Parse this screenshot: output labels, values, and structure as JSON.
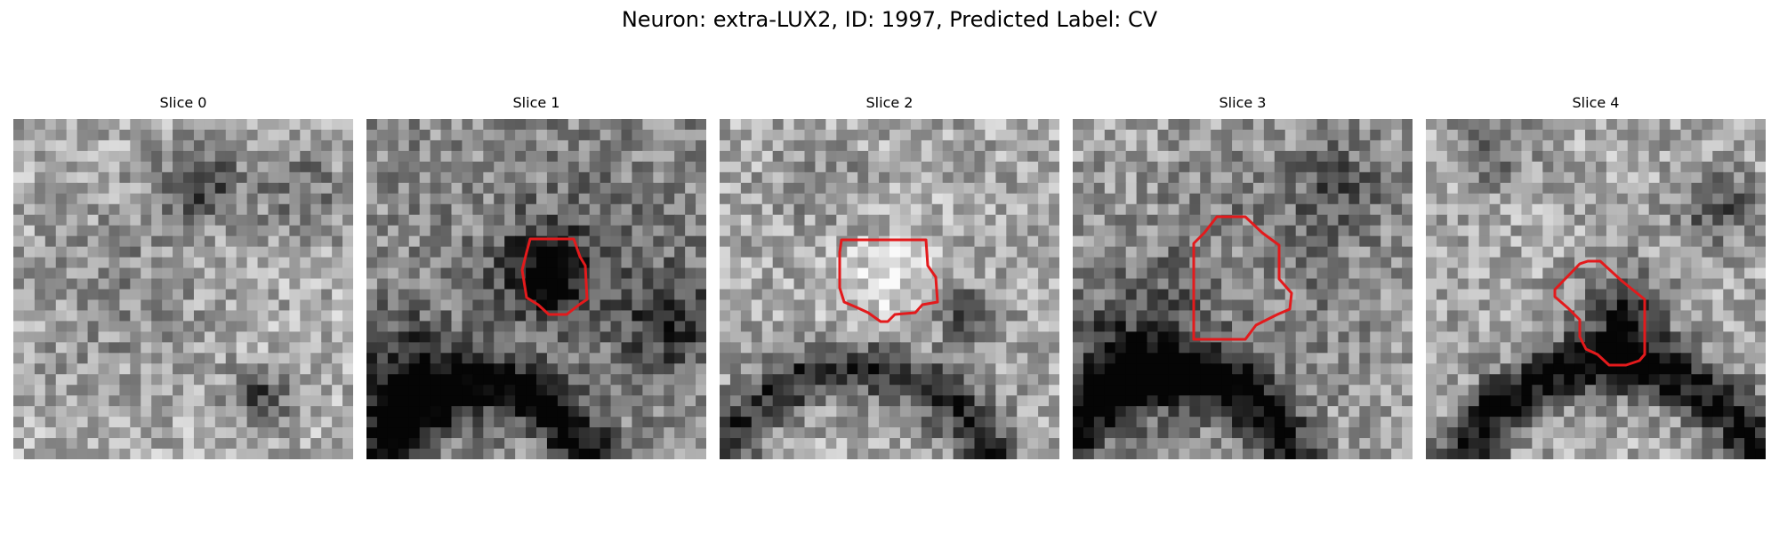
{
  "figure": {
    "title": "Neuron: extra-LUX2, ID: 1997, Predicted Label: CV",
    "contour_color": "#e31a1c",
    "colormap": "gray",
    "slices": [
      {
        "title": "Slice 0",
        "has_contour": false
      },
      {
        "title": "Slice 1",
        "has_contour": true
      },
      {
        "title": "Slice 2",
        "has_contour": true
      },
      {
        "title": "Slice 3",
        "has_contour": true
      },
      {
        "title": "Slice 4",
        "has_contour": true
      }
    ]
  }
}
